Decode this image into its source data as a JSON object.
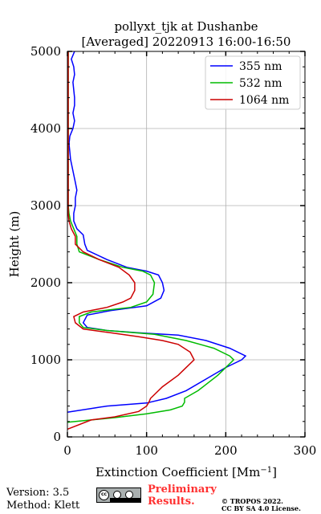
{
  "chart_data": {
    "type": "line",
    "title": "pollyxt_tjk at Dushanbe",
    "subtitle": "[Averaged] 20220913 16:00-16:50",
    "xlabel": "Extinction Coefficient [Mm",
    "xlabel_sup": "−1",
    "xlabel_close": "]",
    "ylabel": "Height (m)",
    "xlim": [
      0,
      300
    ],
    "ylim": [
      0,
      5000
    ],
    "xticks": [
      0,
      100,
      200,
      300
    ],
    "yticks": [
      0,
      1000,
      2000,
      3000,
      4000,
      5000
    ],
    "grid": true,
    "legend_position": "top-right",
    "series": [
      {
        "name": "355 nm",
        "color": "#0000ff",
        "points": [
          [
            0,
            320
          ],
          [
            50,
            400
          ],
          [
            100,
            440
          ],
          [
            125,
            500
          ],
          [
            150,
            600
          ],
          [
            175,
            750
          ],
          [
            200,
            900
          ],
          [
            220,
            1000
          ],
          [
            225,
            1050
          ],
          [
            205,
            1150
          ],
          [
            175,
            1250
          ],
          [
            140,
            1320
          ],
          [
            90,
            1350
          ],
          [
            50,
            1380
          ],
          [
            25,
            1420
          ],
          [
            20,
            1480
          ],
          [
            25,
            1580
          ],
          [
            55,
            1640
          ],
          [
            100,
            1700
          ],
          [
            118,
            1800
          ],
          [
            122,
            1900
          ],
          [
            120,
            2000
          ],
          [
            115,
            2100
          ],
          [
            100,
            2150
          ],
          [
            75,
            2200
          ],
          [
            50,
            2300
          ],
          [
            25,
            2420
          ],
          [
            22,
            2500
          ],
          [
            20,
            2620
          ],
          [
            12,
            2700
          ],
          [
            8,
            2800
          ],
          [
            8,
            2900
          ],
          [
            10,
            3000
          ],
          [
            10,
            3100
          ],
          [
            12,
            3200
          ],
          [
            10,
            3300
          ],
          [
            8,
            3400
          ],
          [
            6,
            3500
          ],
          [
            4,
            3600
          ],
          [
            3,
            3700
          ],
          [
            2,
            3800
          ],
          [
            3,
            3900
          ],
          [
            7,
            4000
          ],
          [
            9,
            4100
          ],
          [
            7,
            4200
          ],
          [
            9,
            4300
          ],
          [
            9,
            4400
          ],
          [
            8,
            4500
          ],
          [
            7,
            4600
          ],
          [
            9,
            4700
          ],
          [
            8,
            4800
          ],
          [
            5,
            4900
          ],
          [
            9,
            5000
          ]
        ]
      },
      {
        "name": "532 nm",
        "color": "#00bb00",
        "points": [
          [
            0,
            190
          ],
          [
            30,
            220
          ],
          [
            60,
            250
          ],
          [
            100,
            300
          ],
          [
            130,
            350
          ],
          [
            145,
            400
          ],
          [
            148,
            450
          ],
          [
            148,
            500
          ],
          [
            165,
            600
          ],
          [
            190,
            800
          ],
          [
            210,
            1000
          ],
          [
            205,
            1050
          ],
          [
            185,
            1150
          ],
          [
            150,
            1250
          ],
          [
            110,
            1330
          ],
          [
            50,
            1380
          ],
          [
            20,
            1420
          ],
          [
            15,
            1480
          ],
          [
            15,
            1560
          ],
          [
            30,
            1620
          ],
          [
            80,
            1680
          ],
          [
            100,
            1750
          ],
          [
            108,
            1850
          ],
          [
            110,
            2000
          ],
          [
            105,
            2100
          ],
          [
            95,
            2150
          ],
          [
            70,
            2200
          ],
          [
            40,
            2300
          ],
          [
            15,
            2400
          ],
          [
            12,
            2500
          ],
          [
            12,
            2600
          ],
          [
            8,
            2700
          ],
          [
            4,
            2800
          ],
          [
            2,
            2900
          ],
          [
            1,
            3000
          ],
          [
            1,
            3500
          ],
          [
            1,
            4000
          ],
          [
            1,
            4500
          ],
          [
            1,
            5000
          ]
        ]
      },
      {
        "name": "1064 nm",
        "color": "#cc0000",
        "points": [
          [
            0,
            100
          ],
          [
            30,
            220
          ],
          [
            60,
            260
          ],
          [
            90,
            330
          ],
          [
            100,
            400
          ],
          [
            103,
            450
          ],
          [
            105,
            500
          ],
          [
            120,
            650
          ],
          [
            140,
            800
          ],
          [
            150,
            900
          ],
          [
            160,
            1000
          ],
          [
            155,
            1100
          ],
          [
            140,
            1200
          ],
          [
            120,
            1250
          ],
          [
            90,
            1300
          ],
          [
            55,
            1350
          ],
          [
            20,
            1400
          ],
          [
            10,
            1480
          ],
          [
            8,
            1560
          ],
          [
            20,
            1620
          ],
          [
            50,
            1680
          ],
          [
            70,
            1750
          ],
          [
            80,
            1800
          ],
          [
            85,
            1900
          ],
          [
            85,
            2000
          ],
          [
            78,
            2100
          ],
          [
            65,
            2200
          ],
          [
            40,
            2300
          ],
          [
            20,
            2400
          ],
          [
            10,
            2500
          ],
          [
            10,
            2600
          ],
          [
            5,
            2700
          ],
          [
            2,
            2800
          ],
          [
            1,
            2900
          ],
          [
            1,
            3000
          ],
          [
            1,
            3500
          ],
          [
            1,
            4000
          ],
          [
            1,
            4500
          ],
          [
            1,
            5000
          ]
        ]
      }
    ]
  },
  "footer": {
    "version": "Version: 3.5",
    "method": "Method: Klett",
    "preliminary_line1": "Preliminary",
    "preliminary_line2": "Results.",
    "copyright_line1": "© TROPOS 2022.",
    "copyright_line2": "CC BY SA 4.0 License.",
    "badge_icon": "cc-by-sa-icon"
  }
}
